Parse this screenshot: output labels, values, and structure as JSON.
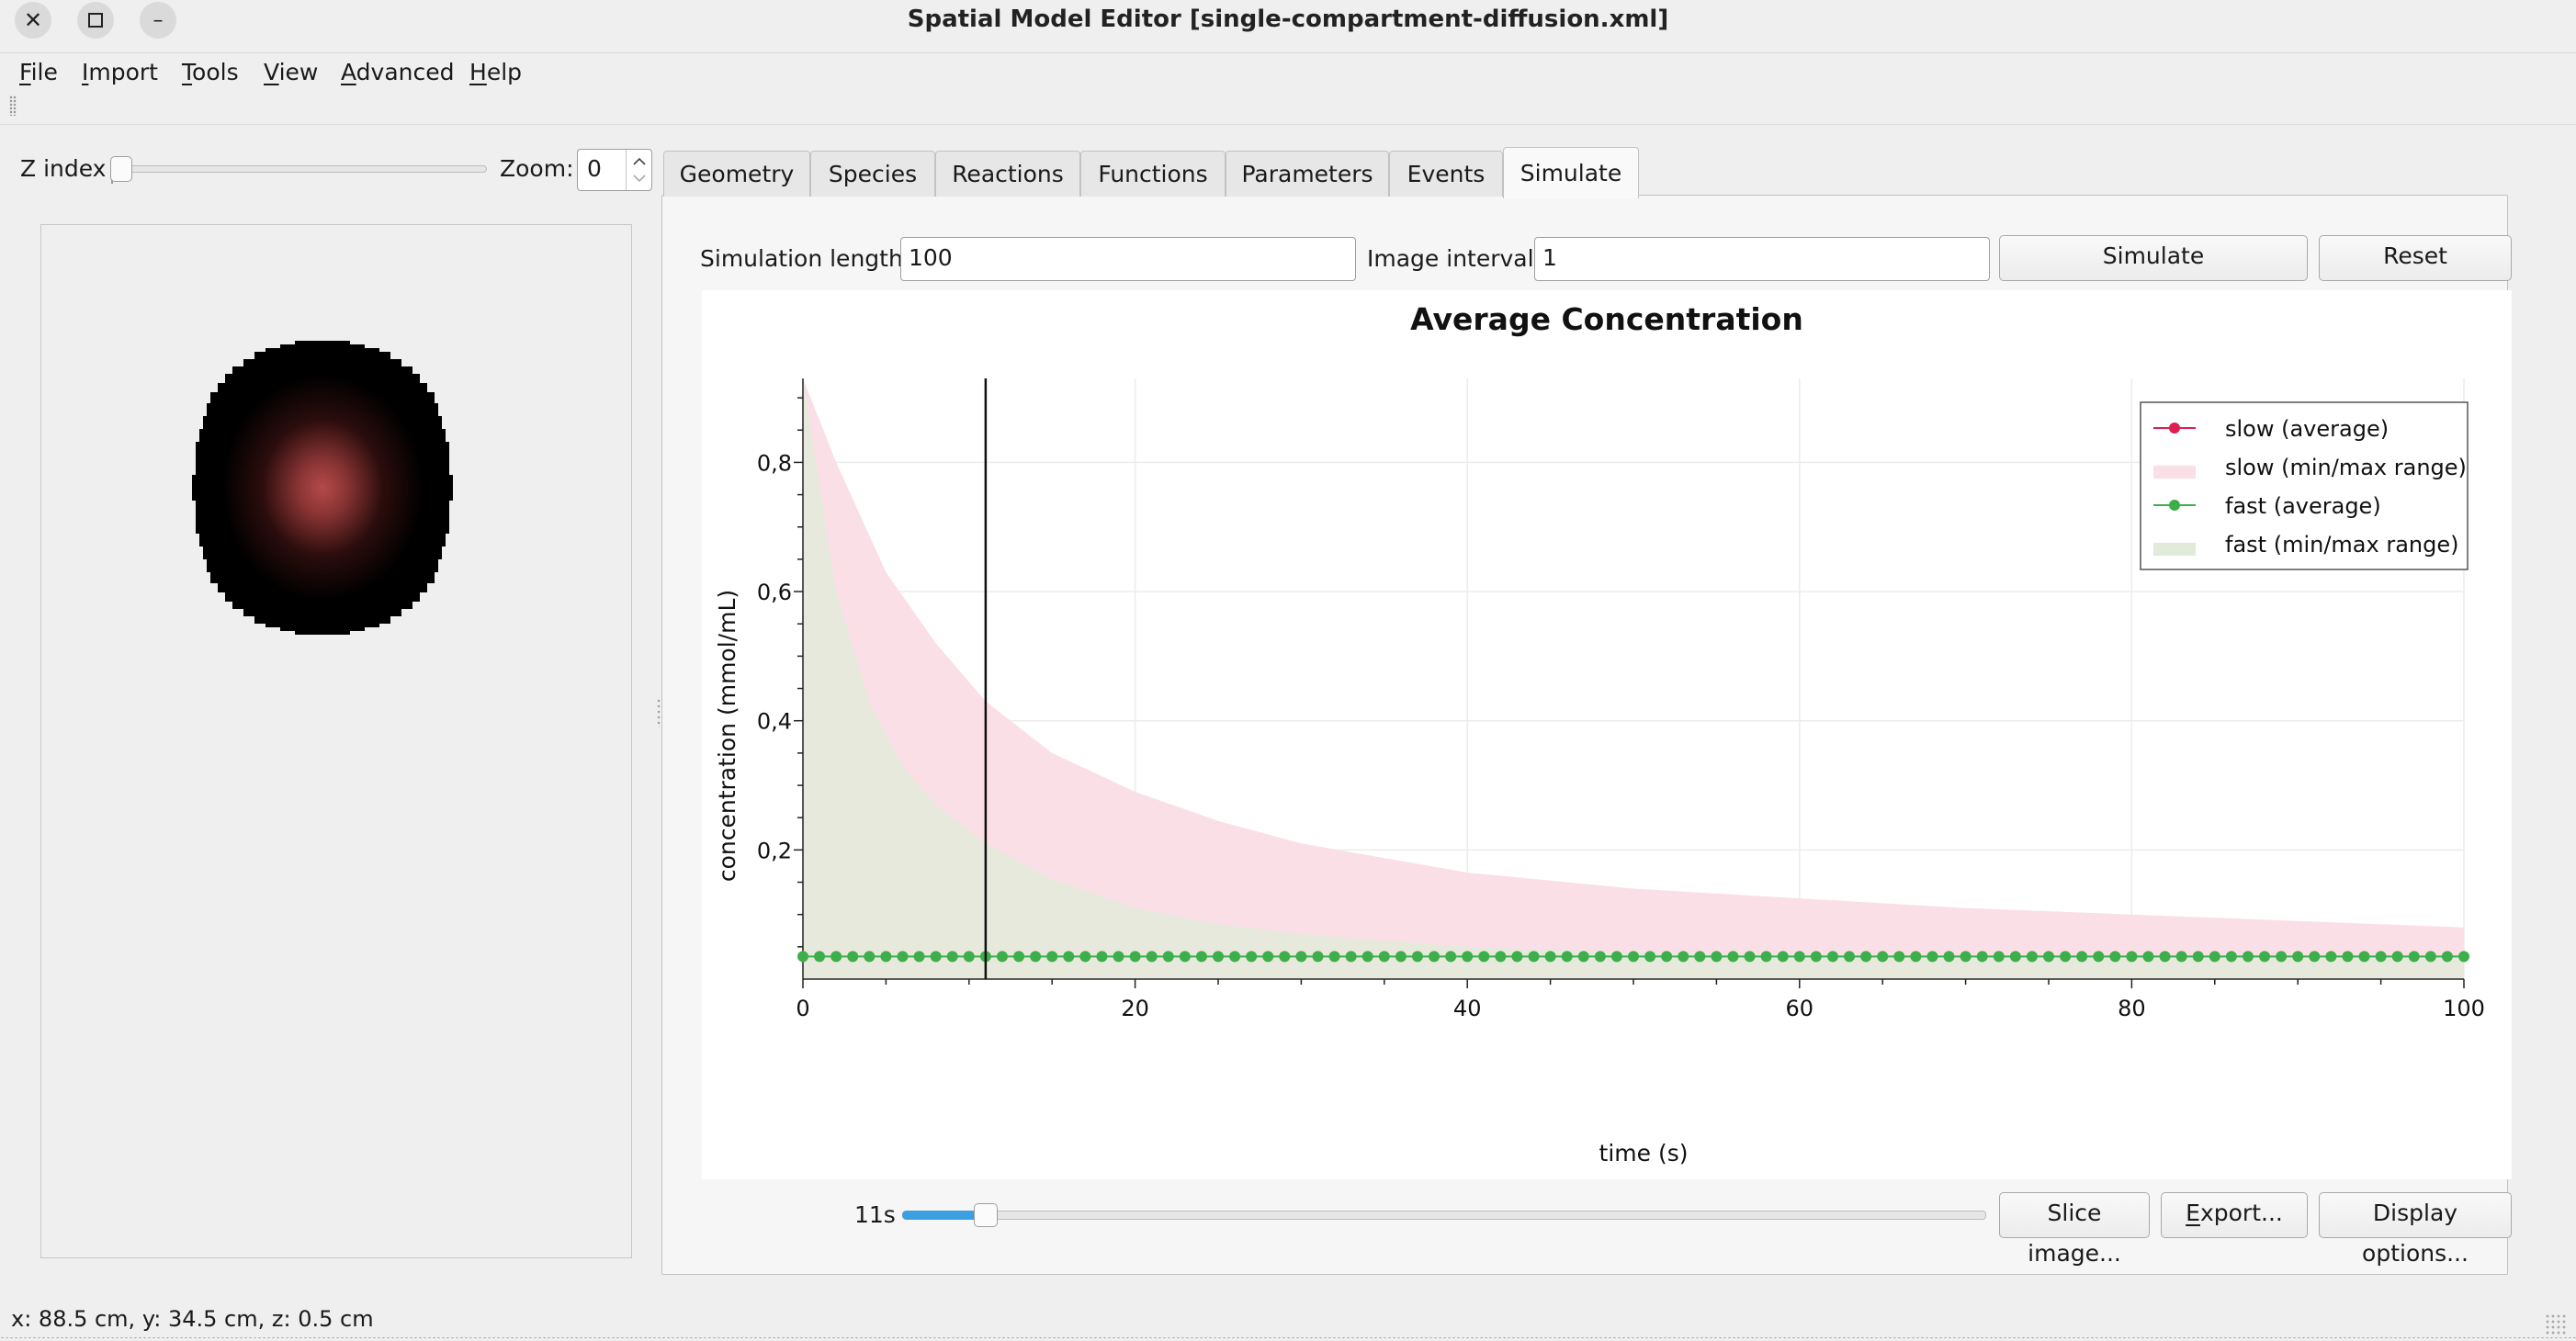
{
  "window": {
    "title": "Spatial Model Editor [single-compartment-diffusion.xml]",
    "close_glyph": "✕",
    "minimize_glyph": "–"
  },
  "menu": {
    "items": [
      {
        "label": "File",
        "mnemonic": "F",
        "rest": "ile"
      },
      {
        "label": "Import",
        "mnemonic": "I",
        "rest": "mport"
      },
      {
        "label": "Tools",
        "mnemonic": "T",
        "rest": "ools"
      },
      {
        "label": "View",
        "mnemonic": "V",
        "rest": "iew"
      },
      {
        "label": "Advanced",
        "mnemonic": "A",
        "rest": "dvanced"
      },
      {
        "label": "Help",
        "mnemonic": "H",
        "rest": "elp"
      }
    ]
  },
  "left_panel": {
    "z_index_label": "Z index",
    "z_index_value": 0,
    "zoom_label": "Zoom:",
    "zoom_value": "0"
  },
  "tabs": [
    {
      "label": "Geometry",
      "active": false
    },
    {
      "label": "Species",
      "active": false
    },
    {
      "label": "Reactions",
      "active": false
    },
    {
      "label": "Functions",
      "active": false
    },
    {
      "label": "Parameters",
      "active": false
    },
    {
      "label": "Events",
      "active": false
    },
    {
      "label": "Simulate",
      "active": true
    }
  ],
  "simulate": {
    "sim_length_label": "Simulation length:",
    "sim_length_value": "100",
    "image_interval_label": "Image interval:",
    "image_interval_value": "1",
    "simulate_button": "Simulate",
    "reset_button": "Reset",
    "time_label": "11s",
    "time_slider_fraction": 0.11,
    "slice_button": "Slice image...",
    "export_button": {
      "mnemonic": "E",
      "rest": "xport..."
    },
    "display_options_button": "Display options..."
  },
  "status_bar": {
    "text": "x: 88.5 cm, y: 34.5 cm, z: 0.5 cm"
  },
  "colors": {
    "slow": "#dc1f4f",
    "slow_range": "#fbdfe6",
    "fast": "#3cae4a",
    "fast_range": "#e2ebd9",
    "accent": "#3c9fe0"
  },
  "chart_data": {
    "type": "area",
    "title": "Average Concentration",
    "xlabel": "time (s)",
    "ylabel": "concentration (mmol/mL)",
    "xlim": [
      0,
      100
    ],
    "ylim": [
      0,
      0.93
    ],
    "x_ticks": [
      "0",
      "20",
      "40",
      "60",
      "80",
      "100"
    ],
    "y_ticks": [
      "0,2",
      "0,4",
      "0,6",
      "0,8"
    ],
    "x_tick_values": [
      0,
      20,
      40,
      60,
      80,
      100
    ],
    "y_tick_values": [
      0.2,
      0.4,
      0.6,
      0.8
    ],
    "grid": true,
    "legend_position": "top-right",
    "current_time_marker": 11,
    "series": [
      {
        "name": "slow (average)",
        "kind": "line-marker",
        "x": [
          0,
          100
        ],
        "values": [
          0.035,
          0.035
        ]
      },
      {
        "name": "slow (min/max range)",
        "kind": "range",
        "x": [
          0,
          2,
          5,
          8,
          11,
          15,
          20,
          25,
          30,
          40,
          50,
          60,
          70,
          80,
          90,
          100
        ],
        "max": [
          0.93,
          0.8,
          0.63,
          0.52,
          0.43,
          0.35,
          0.29,
          0.245,
          0.21,
          0.165,
          0.14,
          0.125,
          0.11,
          0.1,
          0.09,
          0.08
        ],
        "min": [
          0.0,
          0.0,
          0.0,
          0.0,
          0.0,
          0.0,
          0.0,
          0.0,
          0.0,
          0.0,
          0.0,
          0.0,
          0.0,
          0.0,
          0.0,
          0.0
        ]
      },
      {
        "name": "fast (average)",
        "kind": "line-marker",
        "x": [
          0,
          100
        ],
        "values": [
          0.035,
          0.035
        ],
        "marker_count": 101
      },
      {
        "name": "fast (min/max range)",
        "kind": "range",
        "x": [
          0,
          2,
          4,
          6,
          8,
          11,
          15,
          20,
          25,
          30,
          40,
          50,
          60,
          70,
          80,
          100
        ],
        "max": [
          0.93,
          0.6,
          0.43,
          0.33,
          0.27,
          0.21,
          0.155,
          0.11,
          0.085,
          0.07,
          0.05,
          0.042,
          0.038,
          0.037,
          0.036,
          0.035
        ],
        "min": [
          0.0,
          0.0,
          0.0,
          0.0,
          0.0,
          0.0,
          0.0,
          0.0,
          0.0,
          0.0,
          0.0,
          0.0,
          0.0,
          0.0,
          0.0,
          0.0
        ]
      }
    ]
  }
}
